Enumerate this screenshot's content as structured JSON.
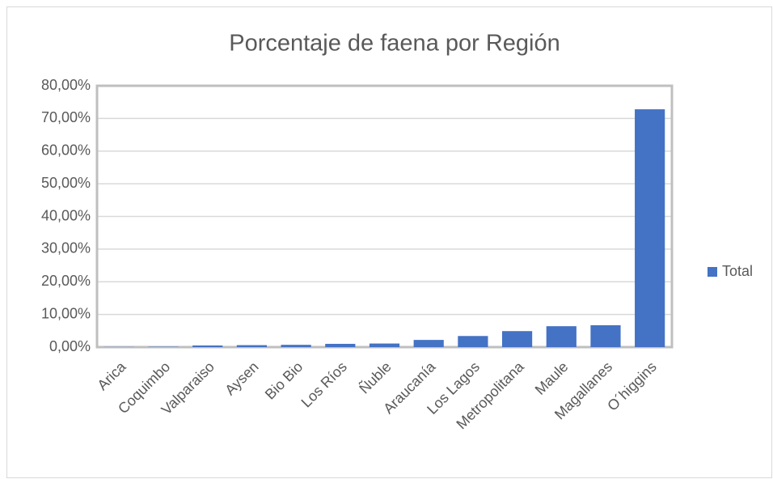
{
  "chart_data": {
    "type": "bar",
    "title": "Porcentaje de faena por Región",
    "categories": [
      "Arica",
      "Coquimbo",
      "Valparaiso",
      "Aysen",
      "Bio Bio",
      "Los Ríos",
      "Ñuble",
      "Araucanía",
      "Los Lagos",
      "Metropolitana",
      "Maule",
      "Magallanes",
      "O´higgins"
    ],
    "series": [
      {
        "name": "Total",
        "color": "#4472c4",
        "values": [
          0.05,
          0.1,
          0.5,
          0.6,
          0.7,
          1.0,
          1.1,
          2.2,
          3.4,
          4.9,
          6.4,
          6.7,
          72.8
        ]
      }
    ],
    "ylim": [
      0,
      80
    ],
    "yticks": [
      {
        "value": 0,
        "label": "0,00%"
      },
      {
        "value": 10,
        "label": "10,00%"
      },
      {
        "value": 20,
        "label": "20,00%"
      },
      {
        "value": 30,
        "label": "30,00%"
      },
      {
        "value": 40,
        "label": "40,00%"
      },
      {
        "value": 50,
        "label": "50,00%"
      },
      {
        "value": 60,
        "label": "60,00%"
      },
      {
        "value": 70,
        "label": "70,00%"
      },
      {
        "value": 80,
        "label": "80,00%"
      }
    ],
    "grid": true,
    "legend": "right"
  }
}
